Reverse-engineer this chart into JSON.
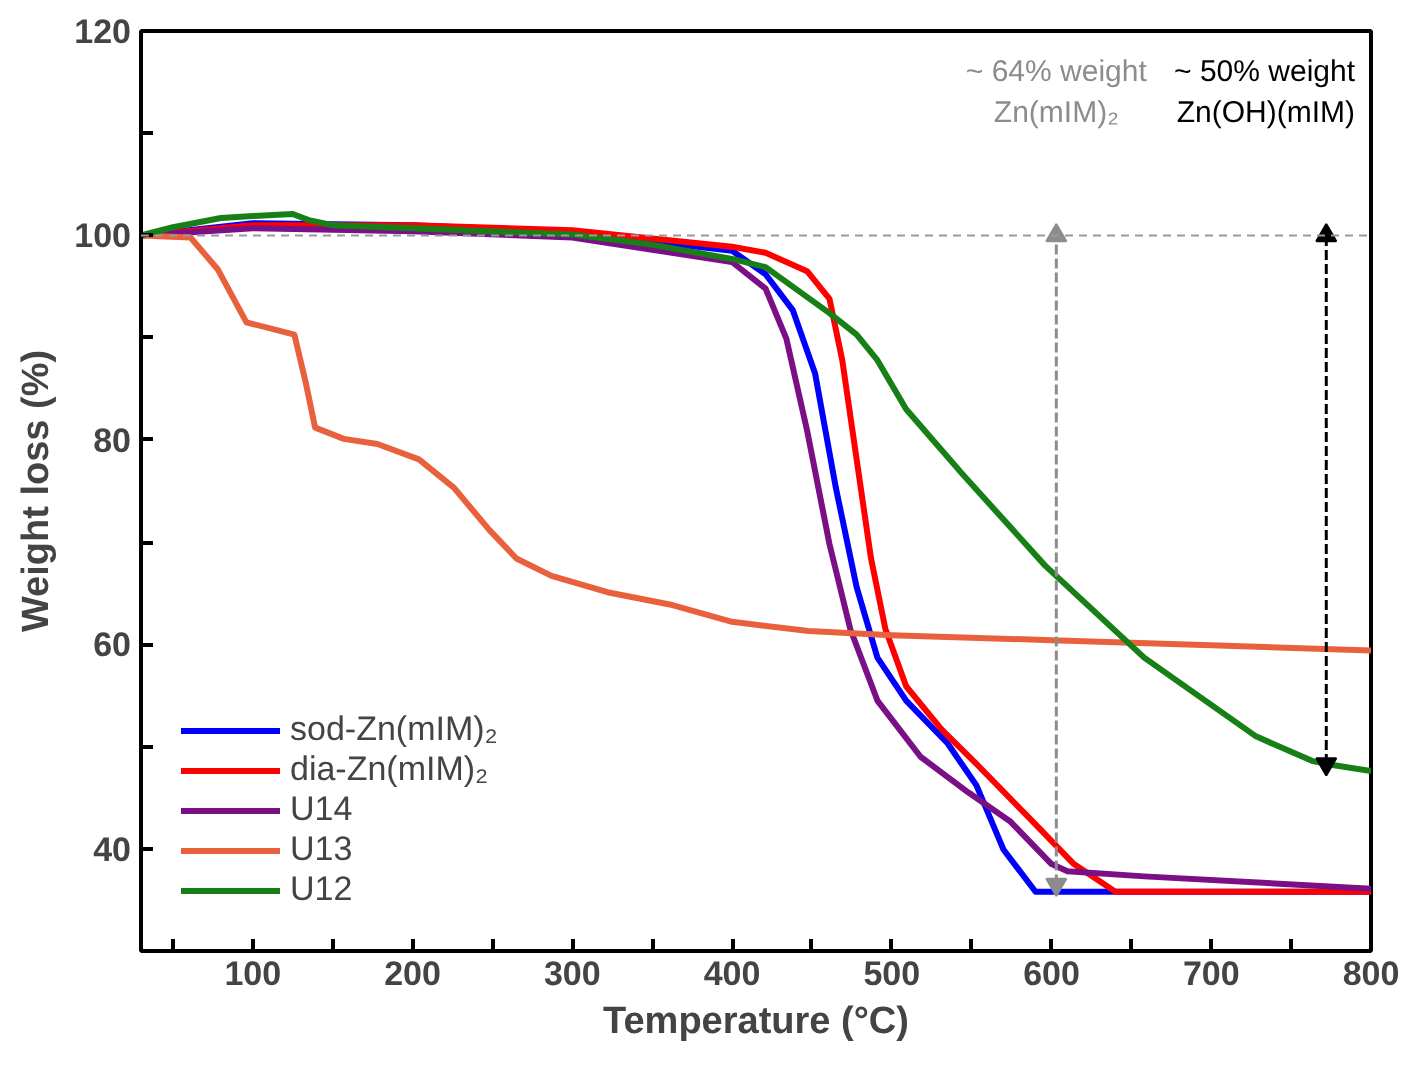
{
  "chart_data": {
    "type": "line",
    "xlabel": "Temperature (°C)",
    "ylabel": "Weight loss (%)",
    "xlim": [
      30,
      800
    ],
    "ylim": [
      30,
      120
    ],
    "xticks": [
      {
        "value": 50,
        "label": null
      },
      100,
      {
        "value": 150,
        "label": null
      },
      200,
      {
        "value": 250,
        "label": null
      },
      300,
      {
        "value": 350,
        "label": null
      },
      400,
      {
        "value": 450,
        "label": null
      },
      500,
      {
        "value": 550,
        "label": null
      },
      600,
      {
        "value": 650,
        "label": null
      },
      700,
      {
        "value": 750,
        "label": null
      },
      800
    ],
    "yticks": [
      40,
      {
        "value": 50,
        "label": null
      },
      60,
      {
        "value": 70,
        "label": null
      },
      80,
      {
        "value": 90,
        "label": null
      },
      100,
      {
        "value": 110,
        "label": null
      },
      120
    ],
    "grid": false,
    "legend": "bottom left",
    "marker": "none",
    "line_style": "solid",
    "series": [
      {
        "name": "sod-Zn(mIM)₂",
        "color": "#0000ff",
        "x": [
          30,
          100,
          200,
          300,
          400,
          421,
          438,
          452,
          465,
          478,
          491,
          509,
          535,
          553,
          570,
          590,
          800
        ],
        "values": [
          100,
          101.2,
          101,
          100.3,
          98.5,
          96.2,
          92.7,
          86.5,
          75.3,
          65.6,
          58.7,
          54.5,
          50.3,
          46.2,
          39.9,
          35.8,
          35.8
        ]
      },
      {
        "name": "dia-Zn(mIM)₂",
        "color": "#ff0000",
        "x": [
          30,
          100,
          200,
          300,
          400,
          421,
          447,
          461,
          469,
          478,
          487,
          496,
          509,
          531,
          553,
          588,
          614,
          640,
          800
        ],
        "values": [
          100,
          101,
          101,
          100.5,
          98.9,
          98.3,
          96.5,
          93.8,
          87.8,
          78.1,
          68.4,
          61.5,
          55.9,
          51.7,
          48.3,
          42.7,
          38.5,
          35.8,
          35.8
        ]
      },
      {
        "name": "U14",
        "color": "#7b0f86",
        "x": [
          30,
          100,
          200,
          300,
          400,
          421,
          434,
          447,
          461,
          474,
          491,
          518,
          548,
          574,
          600,
          610,
          658,
          800
        ],
        "values": [
          100,
          100.7,
          100.4,
          99.8,
          97.4,
          94.8,
          89.9,
          80.9,
          69.8,
          61.5,
          54.5,
          49,
          45.5,
          42.7,
          38.5,
          37.8,
          37.3,
          36.1
        ]
      },
      {
        "name": "U13",
        "color": "#e8603c",
        "x": [
          30,
          61,
          78,
          96,
          126,
          133,
          139,
          157,
          178,
          204,
          226,
          248,
          265,
          287,
          322,
          361,
          400,
          448,
          500,
          600,
          700,
          800
        ],
        "values": [
          100,
          99.8,
          96.7,
          91.5,
          90.3,
          85.7,
          81.2,
          80.1,
          79.6,
          78.1,
          75.3,
          71.2,
          68.4,
          66.7,
          65.1,
          63.9,
          62.2,
          61.3,
          60.9,
          60.4,
          59.9,
          59.4
        ]
      },
      {
        "name": "U12",
        "color": "#168016",
        "x": [
          30,
          50,
          80,
          100,
          125,
          135,
          150,
          200,
          300,
          350,
          400,
          421,
          461,
          478,
          491,
          509,
          544,
          596,
          658,
          728,
          763,
          772,
          800
        ],
        "values": [
          100,
          100.8,
          101.7,
          101.9,
          102.1,
          101.5,
          101,
          100.7,
          100.1,
          99.1,
          97.7,
          96.9,
          92.4,
          90.3,
          87.8,
          83,
          76.7,
          67.7,
          58.7,
          51,
          48.6,
          48.3,
          47.6
        ]
      },
      {
        "type": "line",
        "color": "#8c8c8c",
        "line_style": "dashed",
        "marker": "triangle",
        "x": [
          603,
          603
        ],
        "values": [
          36.5,
          100
        ]
      },
      {
        "type": "line",
        "color": "#000000",
        "line_style": "dashed",
        "marker": "triangle",
        "x": [
          772,
          772
        ],
        "values": [
          48.3,
          100
        ]
      }
    ],
    "ref_lines": [
      {
        "axis": "y",
        "value": 100,
        "label": null,
        "color": "#999999",
        "line_style": "dashed"
      }
    ],
    "annotations": [
      "~ 64% weight\nZn(mIM)₂",
      "~ 50% weight\nZn(OH)(mIM)"
    ]
  }
}
